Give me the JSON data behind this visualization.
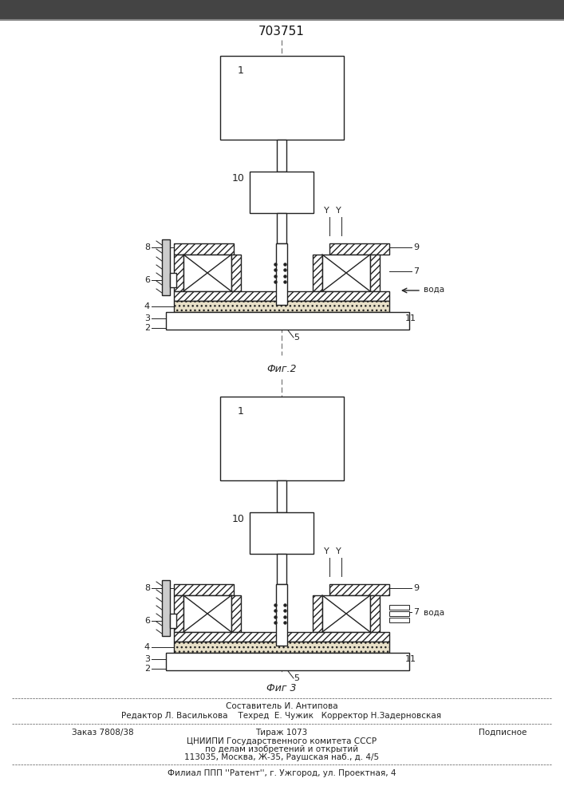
{
  "title": "703751",
  "fig2_label": "Фиг.2",
  "fig3_label": "Фиг 3",
  "line_color": "#222222",
  "footer_lines": [
    "Составитель И. Антипова",
    "Редактор Л. Василькова    Техред  Е. Чужик   Корректор Н.Задерновская",
    "Заказ 7808/38",
    "Тираж 1073",
    "Подписное",
    "ЦНИИПИ Государственного комитета СССР",
    "по делам изобретений и открытий",
    "113035, Москва, Ж-35, Раушская наб., д. 4/5",
    "Филиал ППП ''Pатент'', г. Ужгород, ул. Проектная, 4"
  ]
}
